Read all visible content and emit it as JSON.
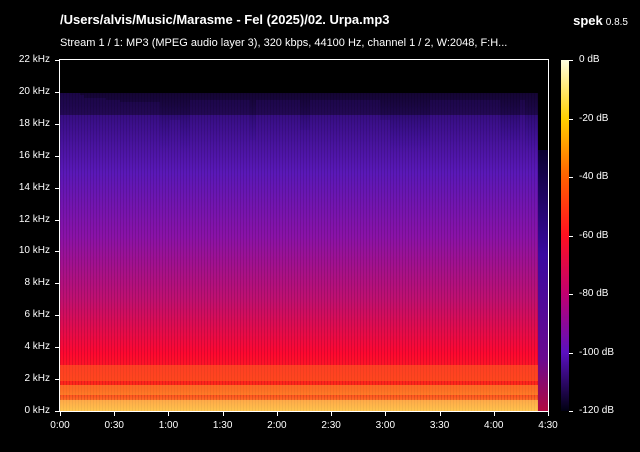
{
  "header": {
    "file_title": "/Users/alvis/Music/Marasme - Fel (2025)/02. Urpa.mp3",
    "app_name": "spek",
    "app_version": "0.8.5",
    "stream_info": "Stream 1 / 1: MP3 (MPEG audio layer 3), 320 kbps, 44100 Hz, channel 1 / 2, W:2048, F:H..."
  },
  "frequency_axis": {
    "labels": [
      "22 kHz",
      "20 kHz",
      "18 kHz",
      "16 kHz",
      "14 kHz",
      "12 kHz",
      "10 kHz",
      "8 kHz",
      "6 kHz",
      "4 kHz",
      "2 kHz",
      "0 kHz"
    ]
  },
  "time_axis": {
    "labels": [
      "0:00",
      "0:30",
      "1:00",
      "1:30",
      "2:00",
      "2:30",
      "3:00",
      "3:30",
      "4:00",
      "4:30"
    ]
  },
  "colorbar": {
    "labels": [
      "0 dB",
      "-20 dB",
      "-40 dB",
      "-60 dB",
      "-80 dB",
      "-100 dB",
      "-120 dB"
    ],
    "colors": [
      "#ffffe0",
      "#ffd000",
      "#ff6000",
      "#ff1020",
      "#c00070",
      "#5a10c0",
      "#000010"
    ]
  },
  "chart_data": {
    "type": "heatmap",
    "title": "/Users/alvis/Music/Marasme - Fel (2025)/02. Urpa.mp3",
    "xlabel": "",
    "ylabel": "",
    "x_unit": "time (m:ss)",
    "y_unit": "kHz",
    "xlim_seconds": [
      0,
      270
    ],
    "ylim_khz": [
      0,
      22
    ],
    "color_scale_db": [
      -120,
      0
    ],
    "track_duration_seconds": 270,
    "x_ticks": [
      "0:00",
      "0:30",
      "1:00",
      "1:30",
      "2:00",
      "2:30",
      "3:00",
      "3:30",
      "4:00",
      "4:30"
    ],
    "y_ticks_khz": [
      0,
      2,
      4,
      6,
      8,
      10,
      12,
      14,
      16,
      18,
      20,
      22
    ],
    "lowpass_cutoff_khz": 20,
    "content_ends_seconds": 268
  }
}
